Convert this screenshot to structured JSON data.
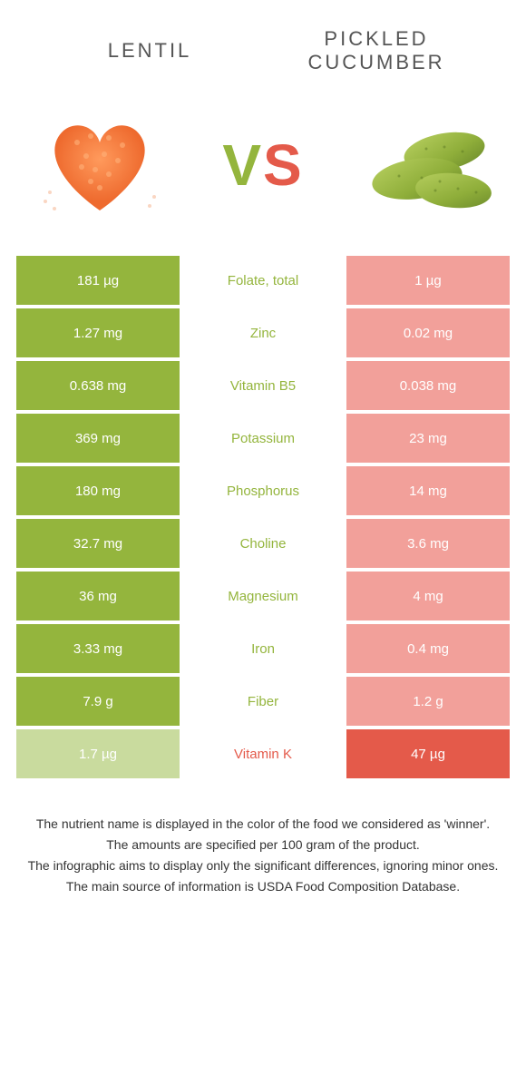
{
  "header": {
    "left_title": "LENTIL",
    "right_title": "PICKLED CUCUMBER"
  },
  "vs": {
    "v": "V",
    "s": "S"
  },
  "colors": {
    "green_strong": "#94b53d",
    "green_weak": "#c9db9e",
    "red_strong": "#e45a4a",
    "red_weak": "#f2a09a",
    "lentil_fill": "#f07b3a",
    "pickle_body": "#8fae3a",
    "pickle_dark": "#6b8a2b",
    "pickle_highlight": "#b7cf5f"
  },
  "rows": [
    {
      "left": "181 µg",
      "label": "Folate, total",
      "right": "1 µg",
      "winner": "left"
    },
    {
      "left": "1.27 mg",
      "label": "Zinc",
      "right": "0.02 mg",
      "winner": "left"
    },
    {
      "left": "0.638 mg",
      "label": "Vitamin B5",
      "right": "0.038 mg",
      "winner": "left"
    },
    {
      "left": "369 mg",
      "label": "Potassium",
      "right": "23 mg",
      "winner": "left"
    },
    {
      "left": "180 mg",
      "label": "Phosphorus",
      "right": "14 mg",
      "winner": "left"
    },
    {
      "left": "32.7 mg",
      "label": "Choline",
      "right": "3.6 mg",
      "winner": "left"
    },
    {
      "left": "36 mg",
      "label": "Magnesium",
      "right": "4 mg",
      "winner": "left"
    },
    {
      "left": "3.33 mg",
      "label": "Iron",
      "right": "0.4 mg",
      "winner": "left"
    },
    {
      "left": "7.9 g",
      "label": "Fiber",
      "right": "1.2 g",
      "winner": "left"
    },
    {
      "left": "1.7 µg",
      "label": "Vitamin K",
      "right": "47 µg",
      "winner": "right"
    }
  ],
  "footnotes": [
    "The nutrient name is displayed in the color of the food we considered as 'winner'.",
    "The amounts are specified per 100 gram of the product.",
    "The infographic aims to display only the significant differences, ignoring minor ones.",
    "The main source of information is USDA Food Composition Database."
  ]
}
